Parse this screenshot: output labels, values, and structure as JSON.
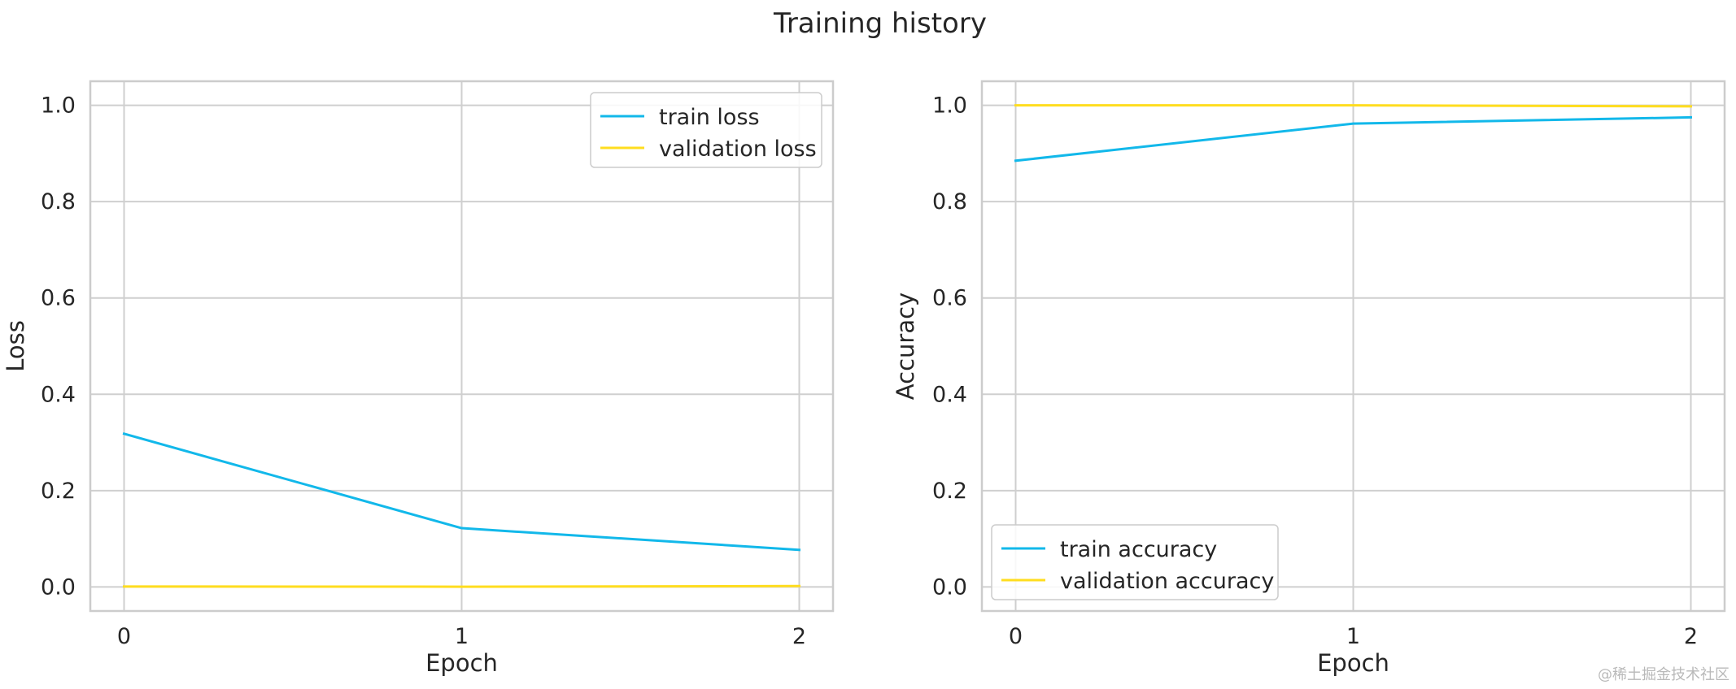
{
  "title": "Training history",
  "watermark": "@稀土掘金技术社区",
  "chart_data": [
    {
      "type": "line",
      "xlabel": "Epoch",
      "ylabel": "Loss",
      "x": [
        0,
        1,
        2
      ],
      "xticks": [
        "0",
        "1",
        "2"
      ],
      "yticks": [
        "0.0",
        "0.2",
        "0.4",
        "0.6",
        "0.8",
        "1.0"
      ],
      "xlim": [
        -0.1,
        2.1
      ],
      "ylim": [
        -0.05,
        1.05
      ],
      "grid": true,
      "legend_position": "upper right",
      "series": [
        {
          "name": "train loss",
          "values": [
            0.318,
            0.122,
            0.077
          ],
          "color": "#12b8ea"
        },
        {
          "name": "validation loss",
          "values": [
            0.0008,
            0.0005,
            0.0018
          ],
          "color": "#ffdd1f"
        }
      ]
    },
    {
      "type": "line",
      "xlabel": "Epoch",
      "ylabel": "Accuracy",
      "x": [
        0,
        1,
        2
      ],
      "xticks": [
        "0",
        "1",
        "2"
      ],
      "yticks": [
        "0.0",
        "0.2",
        "0.4",
        "0.6",
        "0.8",
        "1.0"
      ],
      "xlim": [
        -0.1,
        2.1
      ],
      "ylim": [
        -0.05,
        1.05
      ],
      "grid": true,
      "legend_position": "lower left",
      "series": [
        {
          "name": "train accuracy",
          "values": [
            0.885,
            0.962,
            0.975
          ],
          "color": "#12b8ea"
        },
        {
          "name": "validation accuracy",
          "values": [
            1.0,
            1.0,
            0.998
          ],
          "color": "#ffdd1f"
        }
      ]
    }
  ]
}
